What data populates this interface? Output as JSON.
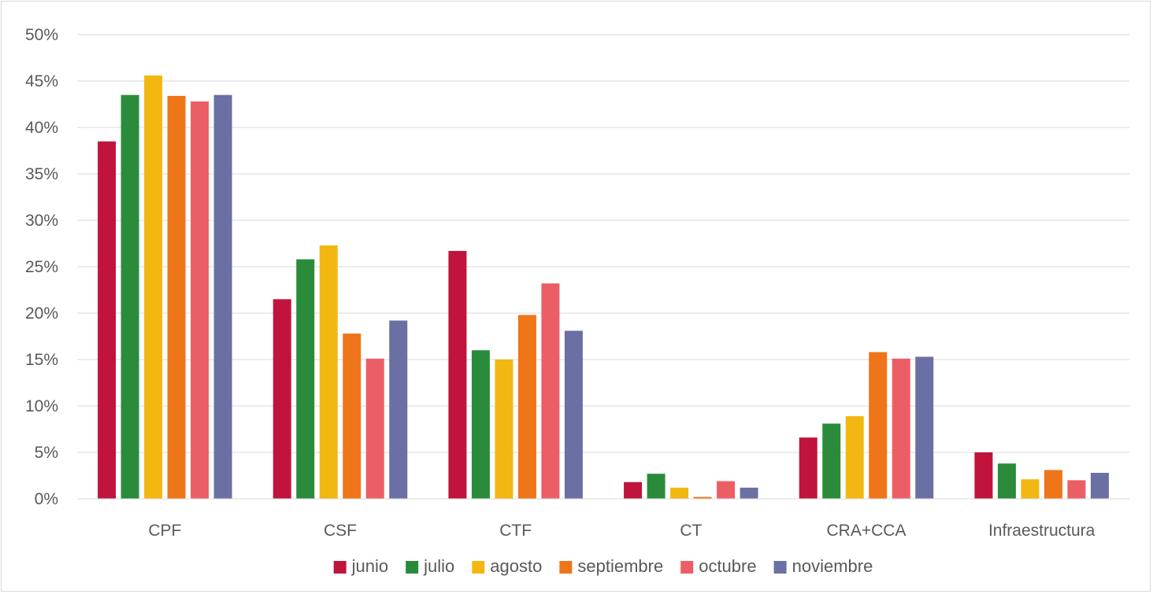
{
  "chart_data": {
    "type": "bar",
    "title": "",
    "xlabel": "",
    "ylabel": "",
    "categories": [
      "CPF",
      "CSF",
      "CTF",
      "CT",
      "CRA+CCA",
      "Infraestructura"
    ],
    "series": [
      {
        "name": "junio",
        "color": "#c0143c",
        "values": [
          38.5,
          21.5,
          26.7,
          1.8,
          6.6,
          5.0
        ]
      },
      {
        "name": "julio",
        "color": "#2a8c3a",
        "values": [
          43.5,
          25.8,
          16.0,
          2.7,
          8.1,
          3.8
        ]
      },
      {
        "name": "agosto",
        "color": "#f2b711",
        "values": [
          45.6,
          27.3,
          15.0,
          1.2,
          8.9,
          2.1
        ]
      },
      {
        "name": "septiembre",
        "color": "#ef7519",
        "values": [
          43.4,
          17.8,
          19.8,
          0.2,
          15.8,
          3.1
        ]
      },
      {
        "name": "octubre",
        "color": "#ec5e66",
        "values": [
          42.8,
          15.1,
          23.2,
          1.9,
          15.1,
          2.0
        ]
      },
      {
        "name": "noviembre",
        "color": "#6a70a3",
        "values": [
          43.5,
          19.2,
          18.1,
          1.2,
          15.3,
          2.8
        ]
      }
    ],
    "ylim": [
      0,
      50
    ],
    "y_ticks": [
      "0%",
      "5%",
      "10%",
      "15%",
      "20%",
      "25%",
      "30%",
      "35%",
      "40%",
      "45%",
      "50%"
    ],
    "grid": true,
    "legend_position": "bottom"
  }
}
